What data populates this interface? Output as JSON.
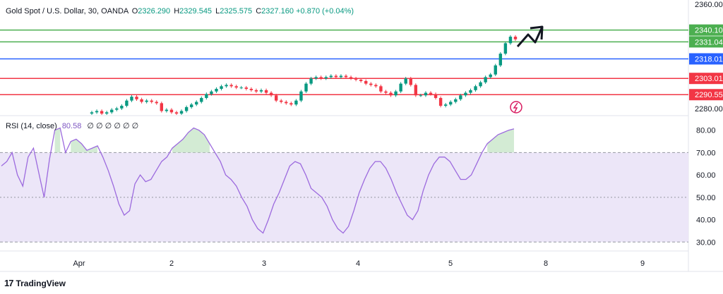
{
  "header": {
    "symbol": "Gold Spot / U.S. Dollar, 30, OANDA",
    "o_label": "O",
    "o_value": "2326.290",
    "h_label": "H",
    "h_value": "2329.545",
    "l_label": "L",
    "l_value": "2325.575",
    "c_label": "C",
    "c_value": "2327.160",
    "change": "+0.870 (+0.04%)"
  },
  "rsi_header": {
    "label": "RSI (14, close)",
    "value": "80.58",
    "zeros": "∅ ∅ ∅ ∅ ∅ ∅"
  },
  "branding": {
    "name": "TradingView"
  },
  "colors": {
    "green_line": "#4caf50",
    "blue_line": "#2962ff",
    "red_line": "#f23645",
    "candle_up": "#089981",
    "candle_down": "#f23645",
    "rsi_line": "#9c6ade",
    "rsi_band": "#ece6f8"
  },
  "chart_data": [
    {
      "type": "candlestick",
      "title": "Gold Spot / U.S. Dollar, 30, OANDA",
      "ylim": [
        2275,
        2361
      ],
      "y_ticks": [
        "2360.000",
        "2280.000"
      ],
      "x_ticks": [
        "Apr",
        "2",
        "3",
        "4",
        "5",
        "8",
        "9"
      ],
      "horizontal_levels": [
        {
          "label": "2340.104",
          "value": 2340.104,
          "color": "#4caf50"
        },
        {
          "label": "2331.043",
          "value": 2331.043,
          "color": "#4caf50"
        },
        {
          "label": "2318.010",
          "value": 2318.01,
          "color": "#2962ff"
        },
        {
          "label": "2303.011",
          "value": 2303.011,
          "color": "#f23645"
        },
        {
          "label": "2290.552",
          "value": 2290.552,
          "color": "#f23645"
        }
      ],
      "trend_path_close": [
        2277,
        2278,
        2276,
        2277,
        2279,
        2280,
        2282,
        2286,
        2289,
        2287,
        2285,
        2286,
        2285,
        2284,
        2278,
        2279,
        2277,
        2276,
        2278,
        2281,
        2283,
        2285,
        2288,
        2291,
        2293,
        2295,
        2297,
        2298,
        2297,
        2296,
        2296,
        2295,
        2294,
        2293,
        2294,
        2292,
        2290,
        2286,
        2285,
        2284,
        2283,
        2286,
        2293,
        2299,
        2303,
        2304,
        2303,
        2304,
        2305,
        2304,
        2305,
        2304,
        2303,
        2302,
        2301,
        2299,
        2298,
        2297,
        2293,
        2292,
        2290,
        2293,
        2299,
        2303,
        2298,
        2290,
        2290,
        2292,
        2291,
        2288,
        2282,
        2283,
        2285,
        2287,
        2290,
        2292,
        2294,
        2297,
        2300,
        2304,
        2306,
        2313,
        2322,
        2330,
        2335,
        2333
      ]
    },
    {
      "type": "line",
      "title": "RSI (14, close)",
      "ylim": [
        26,
        84
      ],
      "y_ticks": [
        "80.00",
        "70.00",
        "60.00",
        "50.00",
        "40.00",
        "30.00"
      ],
      "band": [
        30,
        70
      ],
      "series": [
        {
          "values": [
            64,
            66,
            70,
            60,
            55,
            68,
            72,
            61,
            50,
            67,
            80,
            81,
            70,
            75,
            76,
            74,
            71,
            72,
            73,
            68,
            62,
            55,
            47,
            42,
            44,
            56,
            60,
            57,
            58,
            62,
            66,
            68,
            72,
            74,
            76,
            79,
            81,
            80,
            78,
            74,
            70,
            66,
            60,
            58,
            55,
            50,
            46,
            40,
            36,
            34,
            40,
            47,
            52,
            58,
            64,
            66,
            65,
            60,
            54,
            52,
            50,
            46,
            40,
            36,
            34,
            37,
            44,
            52,
            58,
            63,
            66,
            66,
            63,
            58,
            52,
            47,
            42,
            40,
            44,
            53,
            60,
            65,
            68,
            68,
            66,
            62,
            58,
            58,
            60,
            65,
            70,
            74,
            76,
            78,
            79,
            80,
            80.58
          ]
        }
      ]
    }
  ]
}
